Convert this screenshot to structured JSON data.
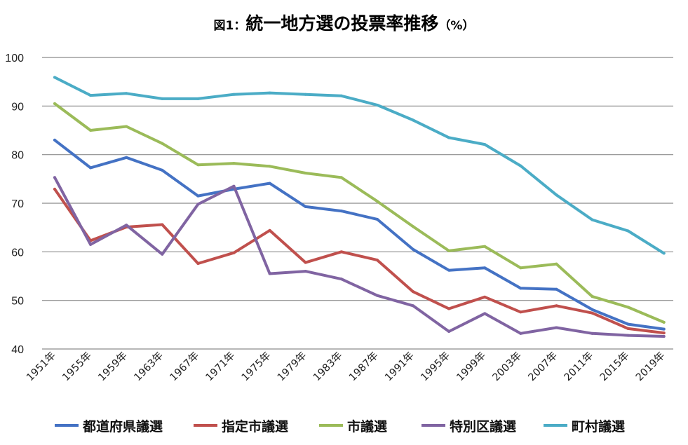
{
  "chart_data": {
    "type": "line",
    "title_prefix": "図1：",
    "title_main": "統一地方選の投票率推移",
    "title_suffix": "（%）",
    "categories": [
      "1951年",
      "1955年",
      "1959年",
      "1963年",
      "1967年",
      "1971年",
      "1975年",
      "1979年",
      "1983年",
      "1987年",
      "1991年",
      "1995年",
      "1999年",
      "2003年",
      "2007年",
      "2011年",
      "2015年",
      "2019年"
    ],
    "ylim": [
      40,
      100
    ],
    "yticks": [
      40,
      50,
      60,
      70,
      80,
      90,
      100
    ],
    "grid": true,
    "legend_position": "bottom",
    "series": [
      {
        "name": "都道府県議選",
        "color": "#4472C4",
        "values": [
          83.0,
          77.3,
          79.4,
          76.8,
          71.5,
          72.9,
          74.1,
          69.3,
          68.4,
          66.7,
          60.5,
          56.2,
          56.7,
          52.5,
          52.3,
          48.1,
          45.1,
          44.1
        ]
      },
      {
        "name": "指定市議選",
        "color": "#C0504D",
        "values": [
          72.9,
          62.3,
          65.1,
          65.6,
          57.6,
          59.8,
          64.4,
          57.8,
          60.0,
          58.3,
          51.8,
          48.3,
          50.7,
          47.6,
          48.9,
          47.4,
          44.2,
          43.3
        ]
      },
      {
        "name": "市議選",
        "color": "#9BBB59",
        "values": [
          90.5,
          85.0,
          85.8,
          82.3,
          77.9,
          78.2,
          77.6,
          76.2,
          75.3,
          70.4,
          65.2,
          60.2,
          61.1,
          56.7,
          57.5,
          50.8,
          48.6,
          45.5
        ]
      },
      {
        "name": "特別区議選",
        "color": "#8064A2",
        "values": [
          75.3,
          61.5,
          65.5,
          59.5,
          69.8,
          73.5,
          55.5,
          56.0,
          54.4,
          51.0,
          48.9,
          43.6,
          47.3,
          43.2,
          44.4,
          43.2,
          42.8,
          42.6
        ]
      },
      {
        "name": "町村議選",
        "color": "#4BACC6",
        "values": [
          95.9,
          92.2,
          92.6,
          91.5,
          91.5,
          92.4,
          92.7,
          92.4,
          92.1,
          90.2,
          87.1,
          83.5,
          82.1,
          77.7,
          71.7,
          66.6,
          64.3,
          59.7
        ]
      }
    ]
  }
}
